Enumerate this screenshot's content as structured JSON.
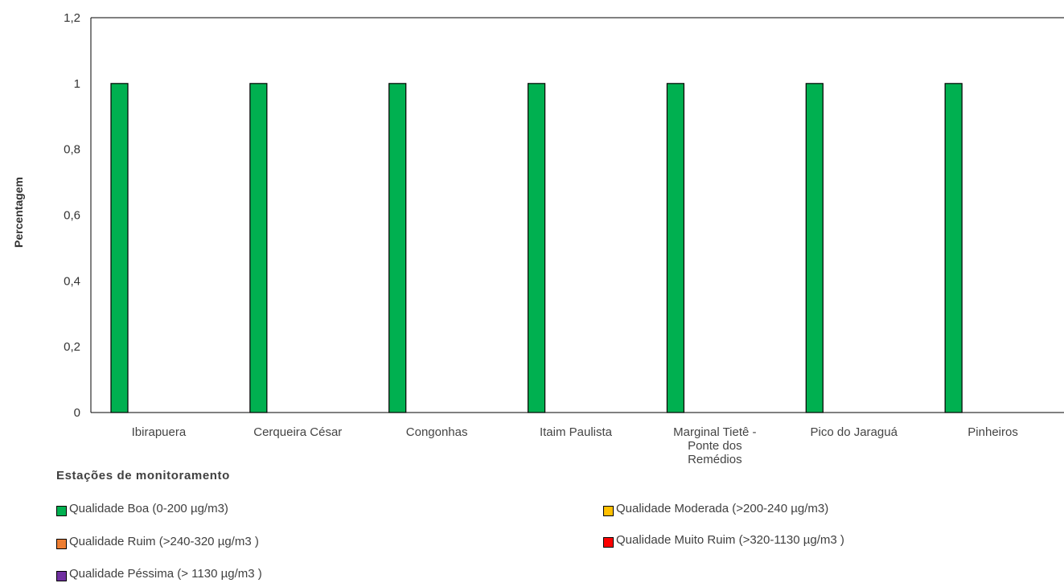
{
  "chart_data": {
    "type": "bar",
    "title": "",
    "ylabel": "Percentagem",
    "xlabel": "Estações de monitoramento",
    "ylim": [
      0,
      1.2
    ],
    "yticks": [
      "0",
      "0,2",
      "0,4",
      "0,6",
      "0,8",
      "1",
      "1,2"
    ],
    "categories": [
      "Ibirapuera",
      "Cerqueira César",
      "Congonhas",
      "Itaim Paulista",
      "Marginal Tietê - Ponte dos Remédios",
      "Pico do Jaraguá",
      "Pinheiros"
    ],
    "category_label_lines": [
      [
        "Ibirapuera"
      ],
      [
        "Cerqueira César"
      ],
      [
        "Congonhas"
      ],
      [
        "Itaim Paulista"
      ],
      [
        "Marginal Tietê -",
        "Ponte dos",
        "Remédios"
      ],
      [
        "Pico do Jaraguá"
      ],
      [
        "Pinheiros"
      ]
    ],
    "series": [
      {
        "name": "Qualidade Boa (0-200 µg/m3)",
        "color": "#00b050",
        "values": [
          1,
          1,
          1,
          1,
          1,
          1,
          1
        ]
      },
      {
        "name": "Qualidade Moderada (>200-240 µg/m3)",
        "color": "#ffc000",
        "values": [
          0,
          0,
          0,
          0,
          0,
          0,
          0
        ]
      },
      {
        "name": "Qualidade Ruim (>240-320 µg/m3 )",
        "color": "#ed7d31",
        "values": [
          0,
          0,
          0,
          0,
          0,
          0,
          0
        ]
      },
      {
        "name": "Qualidade Muito Ruim (>320-1130 µg/m3 )",
        "color": "#ff0000",
        "values": [
          0,
          0,
          0,
          0,
          0,
          0,
          0
        ]
      },
      {
        "name": "Qualidade Péssima (> 1130 µg/m3 )",
        "color": "#7030a0",
        "values": [
          0,
          0,
          0,
          0,
          0,
          0,
          0
        ]
      }
    ],
    "grid": false,
    "legend_position": "bottom"
  },
  "legend": [
    {
      "label": "Qualidade Boa (0-200 µg/m3)",
      "color": "#00b050"
    },
    {
      "label": "Qualidade Moderada (>200-240 µg/m3)",
      "color": "#ffc000"
    },
    {
      "label": "Qualidade Ruim (>240-320 µg/m3 )",
      "color": "#ed7d31"
    },
    {
      "label": "Qualidade Muito Ruim (>320-1130 µg/m3 )",
      "color": "#ff0000"
    },
    {
      "label": "Qualidade Péssima (> 1130 µg/m3 )",
      "color": "#7030a0"
    }
  ]
}
